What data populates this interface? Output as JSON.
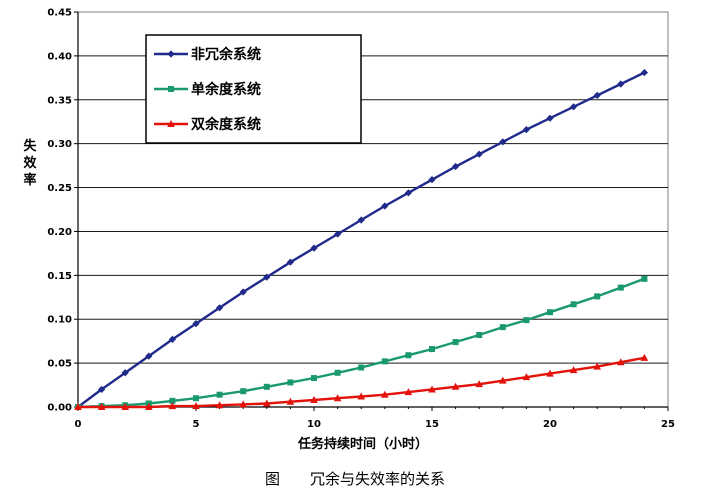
{
  "chart_data": {
    "type": "line",
    "xlabel": "任务持续时间（小时）",
    "ylabel": "失效率",
    "xlim": [
      0,
      25
    ],
    "ylim": [
      0,
      0.45
    ],
    "x_ticks": [
      0,
      5,
      10,
      15,
      20,
      25
    ],
    "y_ticks": [
      0.0,
      0.05,
      0.1,
      0.15,
      0.2,
      0.25,
      0.3,
      0.35,
      0.4,
      0.45
    ],
    "grid": "horizontal",
    "legend_position": "top-left",
    "caption": "图　　冗余与失效率的关系",
    "x": [
      0,
      1,
      2,
      3,
      4,
      5,
      6,
      7,
      8,
      9,
      10,
      11,
      12,
      13,
      14,
      15,
      16,
      17,
      18,
      19,
      20,
      21,
      22,
      23,
      24
    ],
    "series": [
      {
        "name": "非冗余系统",
        "color": "#1f2a8a",
        "marker": "diamond",
        "values": [
          0.0,
          0.02,
          0.039,
          0.058,
          0.077,
          0.095,
          0.113,
          0.131,
          0.148,
          0.165,
          0.181,
          0.197,
          0.213,
          0.229,
          0.244,
          0.259,
          0.274,
          0.288,
          0.302,
          0.316,
          0.329,
          0.342,
          0.355,
          0.368,
          0.381
        ]
      },
      {
        "name": "单余度系统",
        "color": "#1a9a6c",
        "marker": "square",
        "values": [
          0.0,
          0.001,
          0.002,
          0.004,
          0.007,
          0.01,
          0.014,
          0.018,
          0.023,
          0.028,
          0.033,
          0.039,
          0.045,
          0.052,
          0.059,
          0.066,
          0.074,
          0.082,
          0.091,
          0.099,
          0.108,
          0.117,
          0.126,
          0.136,
          0.146
        ]
      },
      {
        "name": "双余度系统",
        "color": "#e3120b",
        "marker": "triangle",
        "values": [
          0.0,
          0.0,
          0.0,
          0.0,
          0.001,
          0.001,
          0.002,
          0.003,
          0.004,
          0.006,
          0.008,
          0.01,
          0.012,
          0.014,
          0.017,
          0.02,
          0.023,
          0.026,
          0.03,
          0.034,
          0.038,
          0.042,
          0.046,
          0.051,
          0.056
        ]
      }
    ]
  }
}
